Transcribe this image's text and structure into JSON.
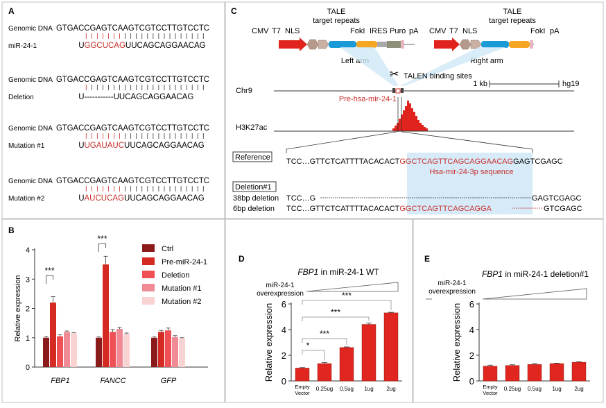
{
  "panels": {
    "a": {
      "label": "A",
      "groups": [
        {
          "top_label": "Genomic DNA",
          "top_seq": "GTGACCGAGTCAAGTCGTCCTTGTCCTC",
          "bottom_label": "miR-24-1",
          "bottom_prefix": "U",
          "bottom_red": "GGCUCAG",
          "bottom_suffix": "UUCAGCAGGAACAG"
        },
        {
          "top_label": "Genomic DNA",
          "top_seq": "GTGACCGAGTCAAGTCGTCCTTGTCCTC",
          "bottom_label": "Deletion",
          "bottom_prefix": "U",
          "bottom_red": "",
          "bottom_suffix": "-----------UUCAGCAGGAACAG"
        },
        {
          "top_label": "Genomic DNA",
          "top_seq": "GTGACCGAGTCAAGTCGTCCTTGTCCTC",
          "bottom_label": "Mutation #1",
          "bottom_prefix": "U",
          "bottom_red": "UGAUAUC",
          "bottom_suffix": "UUCAGCAGGAACAG"
        },
        {
          "top_label": "Genomic DNA",
          "top_seq": "GTGACCGAGTCAAGTCGTCCTTGTCCTC",
          "bottom_label": "Mutation #2",
          "bottom_prefix": "U",
          "bottom_red": "AUCUCAG",
          "bottom_suffix": "UUCAGCAGGAACAG"
        }
      ]
    },
    "b": {
      "label": "B",
      "chart_data": {
        "type": "bar",
        "ylabel": "Relative expression",
        "ylim": [
          0,
          4
        ],
        "yticks": [
          0,
          1,
          2,
          3,
          4
        ],
        "categories": [
          "FBP1",
          "FANCC",
          "GFP"
        ],
        "series": [
          {
            "name": "Ctrl",
            "color": "#8b1a1a",
            "values": [
              1.0,
              1.0,
              1.0
            ],
            "errors": [
              0.04,
              0.03,
              0.03
            ]
          },
          {
            "name": "Pre-miR-24-1",
            "color": "#d42a22",
            "values": [
              2.2,
              3.5,
              1.2
            ],
            "errors": [
              0.2,
              0.28,
              0.05
            ]
          },
          {
            "name": "Deletion",
            "color": "#ef5055",
            "values": [
              1.05,
              1.2,
              1.25
            ],
            "errors": [
              0.05,
              0.08,
              0.08
            ]
          },
          {
            "name": "Mutation #1",
            "color": "#f08b96",
            "values": [
              1.2,
              1.3,
              1.02
            ],
            "errors": [
              0.03,
              0.05,
              0.05
            ]
          },
          {
            "name": "Mutation #2",
            "color": "#f9d2d2",
            "values": [
              1.15,
              1.13,
              0.98
            ],
            "errors": [
              0.02,
              0.03,
              0.02
            ]
          }
        ],
        "annotations": [
          {
            "text": "***",
            "category": "FBP1"
          },
          {
            "text": "***",
            "category": "FANCC"
          }
        ]
      }
    },
    "c": {
      "label": "C",
      "left_construct": {
        "tale_title": "TALE",
        "tale_subtitle": "target repeats",
        "parts": [
          "CMV",
          "T7",
          "NLS",
          "FokI",
          "IRES",
          "Puro",
          "pA"
        ],
        "arm_label": "Left arm"
      },
      "right_construct": {
        "tale_title": "TALE",
        "tale_subtitle": "target repeats",
        "parts": [
          "CMV",
          "T7",
          "NLS",
          "FokI",
          "pA"
        ],
        "arm_label": "Right arm"
      },
      "binding_label": "TALEN binding sites",
      "scale_label": "1 kb",
      "genome_label": "hg19",
      "track1_label": "Chr9",
      "gene_label": "Pre-hsa-mir-24-1",
      "track2_label": "H3K27ac",
      "reference_label": "Reference",
      "reference_prefix": "TCC…GTTCTCATTTTACACACT",
      "reference_red": "GGCTCAGTTCAGCAGGAACAG",
      "reference_suffix": "GAGTCGAGC",
      "mature_label": "Hsa-mir-24-3p sequence",
      "deletion_label": "Deletion#1",
      "del38_label": "38bp deletion",
      "del38_prefix": "TCC…G",
      "del38_suffix": "GAGTCGAGC",
      "del6_label": "6bp deletion",
      "del6_prefix": "TCC…GTTCTCATTTTACACACT",
      "del6_red": "GGCTCAGTTCAGCAGGA",
      "del6_suffix": "GTCGAGC"
    },
    "d": {
      "label": "D",
      "title_gene": "FBP1",
      "title_rest": "in miR-24-1 WT",
      "overexp_line1": "miR-24-1",
      "overexp_line2": "overexpression",
      "chart_data": {
        "type": "bar",
        "ylabel": "Relative expression",
        "ylim": [
          0,
          6
        ],
        "yticks": [
          0,
          2,
          4,
          6
        ],
        "categories": [
          "Empty Vector",
          "0.25ug",
          "0.5ug",
          "1ug",
          "2ug"
        ],
        "values": [
          1.0,
          1.35,
          2.6,
          4.4,
          5.3
        ],
        "errors": [
          0.04,
          0.08,
          0.05,
          0.12,
          0.05
        ],
        "color": "#e0261f",
        "annotations": [
          {
            "text": "*",
            "from": 0,
            "to": 1
          },
          {
            "text": "***",
            "from": 0,
            "to": 2
          },
          {
            "text": "***",
            "from": 0,
            "to": 3
          },
          {
            "text": "***",
            "from": 0,
            "to": 4
          }
        ]
      }
    },
    "e": {
      "label": "E",
      "title_gene": "FBP1",
      "title_rest": "in miR-24-1 deletion#1",
      "overexp_line1": "miR-24-1",
      "overexp_line2": "overexpression",
      "chart_data": {
        "type": "bar",
        "ylabel": "Relative expression",
        "ylim": [
          0,
          6
        ],
        "yticks": [
          0,
          2,
          4,
          6
        ],
        "categories": [
          "Empty Vector",
          "0.25ug",
          "0.5ug",
          "1ug",
          "2ug"
        ],
        "values": [
          1.15,
          1.2,
          1.28,
          1.35,
          1.45
        ],
        "errors": [
          0.08,
          0.06,
          0.08,
          0.03,
          0.05
        ],
        "color": "#e0261f"
      }
    }
  }
}
